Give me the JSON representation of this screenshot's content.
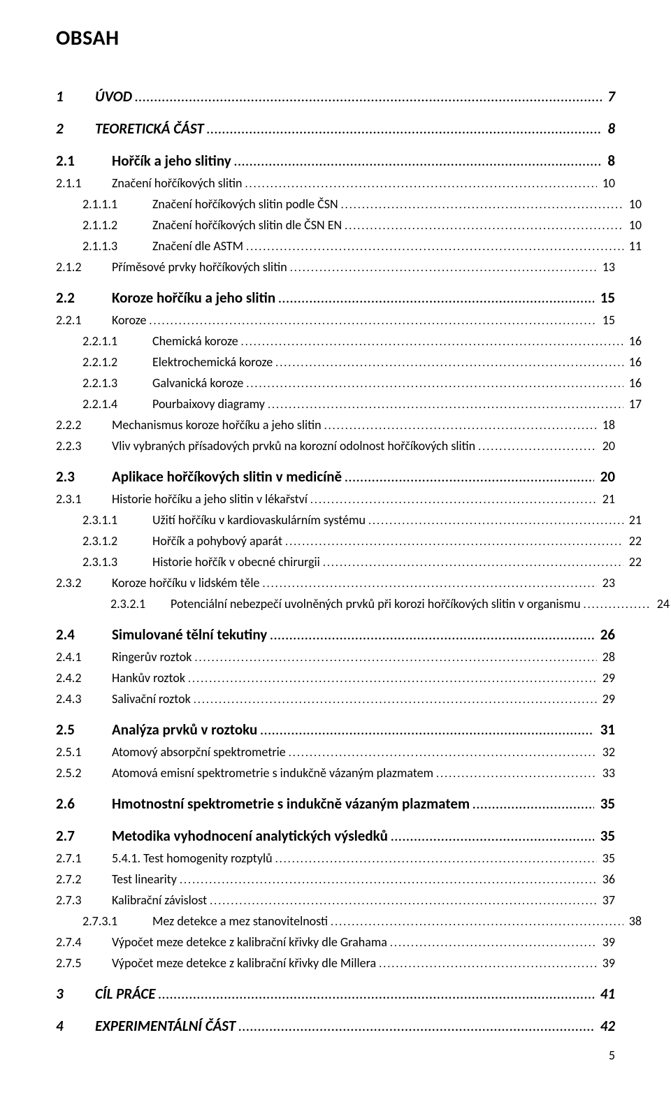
{
  "heading": "OBSAH",
  "footer_page": "5",
  "dots_fill": "............................................................................................................................................................................................................................................",
  "entries": [
    {
      "lvl": 0,
      "spacer": false,
      "num": "1",
      "title": "ÚVOD",
      "page": "7"
    },
    {
      "lvl": 0,
      "spacer": true,
      "num": "2",
      "title": "TEORETICKÁ ČÁST",
      "page": "8"
    },
    {
      "lvl": 1,
      "spacer": true,
      "num": "2.1",
      "title": "Hořčík a jeho slitiny",
      "page": "8"
    },
    {
      "lvl": 2,
      "spacer": false,
      "num": "2.1.1",
      "title": "Značení hořčíkových slitin",
      "page": "10"
    },
    {
      "lvl": 3,
      "spacer": false,
      "num": "2.1.1.1",
      "title": "Značení hořčíkových slitin podle ČSN",
      "page": "10"
    },
    {
      "lvl": 3,
      "spacer": false,
      "num": "2.1.1.2",
      "title": "Značení hořčíkových slitin dle ČSN EN",
      "page": "10"
    },
    {
      "lvl": 3,
      "spacer": false,
      "num": "2.1.1.3",
      "title": "Značení dle ASTM",
      "page": "11"
    },
    {
      "lvl": 2,
      "spacer": false,
      "num": "2.1.2",
      "title": "Příměsové prvky hořčíkových slitin",
      "page": "13"
    },
    {
      "lvl": 1,
      "spacer": true,
      "num": "2.2",
      "title": "Koroze hořčíku a jeho slitin",
      "page": "15"
    },
    {
      "lvl": 2,
      "spacer": false,
      "num": "2.2.1",
      "title": "Koroze",
      "page": "15"
    },
    {
      "lvl": 3,
      "spacer": false,
      "num": "2.2.1.1",
      "title": "Chemická koroze",
      "page": "16"
    },
    {
      "lvl": 3,
      "spacer": false,
      "num": "2.2.1.2",
      "title": "Elektrochemická koroze",
      "page": "16"
    },
    {
      "lvl": 3,
      "spacer": false,
      "num": "2.2.1.3",
      "title": "Galvanická koroze",
      "page": "16"
    },
    {
      "lvl": 3,
      "spacer": false,
      "num": "2.2.1.4",
      "title": "Pourbaixovy diagramy",
      "page": "17"
    },
    {
      "lvl": 2,
      "spacer": false,
      "num": "2.2.2",
      "title": "Mechanismus koroze hořčíku a jeho slitin",
      "page": "18"
    },
    {
      "lvl": 2,
      "spacer": false,
      "num": "2.2.3",
      "title": "Vliv vybraných přísadových prvků na korozní odolnost hořčíkových slitin",
      "page": "20"
    },
    {
      "lvl": 1,
      "spacer": true,
      "num": "2.3",
      "title": "Aplikace hořčíkových slitin v medicíně",
      "page": "20"
    },
    {
      "lvl": 2,
      "spacer": false,
      "num": "2.3.1",
      "title": "Historie hořčíku a jeho slitin v lékařství",
      "page": "21"
    },
    {
      "lvl": 3,
      "spacer": false,
      "num": "2.3.1.1",
      "title": "Užití hořčíku v kardiovaskulárním systému",
      "page": "21"
    },
    {
      "lvl": 3,
      "spacer": false,
      "num": "2.3.1.2",
      "title": "Hořčík a pohybový aparát",
      "page": "22"
    },
    {
      "lvl": 3,
      "spacer": false,
      "num": "2.3.1.3",
      "title": "Historie hořčík v obecné chirurgii",
      "page": "22"
    },
    {
      "lvl": 2,
      "spacer": false,
      "num": "2.3.2",
      "title": "Koroze hořčíku v lidském těle",
      "page": "23"
    },
    {
      "lvl": 4,
      "spacer": false,
      "num": "2.3.2.1",
      "title": "Potenciální nebezpečí uvolněných prvků při korozi hořčíkových slitin v organismu",
      "page": "24"
    },
    {
      "lvl": 1,
      "spacer": true,
      "num": "2.4",
      "title": "Simulované tělní tekutiny",
      "page": "26"
    },
    {
      "lvl": 2,
      "spacer": false,
      "num": "2.4.1",
      "title": "Ringerův roztok",
      "page": "28"
    },
    {
      "lvl": 2,
      "spacer": false,
      "num": "2.4.2",
      "title": "Hankův roztok",
      "page": "29"
    },
    {
      "lvl": 2,
      "spacer": false,
      "num": "2.4.3",
      "title": "Salivační roztok",
      "page": "29"
    },
    {
      "lvl": 1,
      "spacer": true,
      "num": "2.5",
      "title": "Analýza prvků v roztoku",
      "page": "31"
    },
    {
      "lvl": 2,
      "spacer": false,
      "num": "2.5.1",
      "title": "Atomový absorpční spektrometrie",
      "page": "32"
    },
    {
      "lvl": 2,
      "spacer": false,
      "num": "2.5.2",
      "title": "Atomová emisní spektrometrie s indukčně vázaným plazmatem",
      "page": "33"
    },
    {
      "lvl": 1,
      "spacer": true,
      "num": "2.6",
      "title": "Hmotnostní spektrometrie s indukčně vázaným plazmatem",
      "page": "35"
    },
    {
      "lvl": 1,
      "spacer": true,
      "num": "2.7",
      "title": "Metodika vyhodnocení analytických výsledků",
      "page": "35"
    },
    {
      "lvl": 2,
      "spacer": false,
      "num": "2.7.1",
      "title": "5.4.1. Test homogenity rozptylů",
      "page": "35"
    },
    {
      "lvl": 2,
      "spacer": false,
      "num": "2.7.2",
      "title": "Test linearity",
      "page": "36"
    },
    {
      "lvl": 2,
      "spacer": false,
      "num": "2.7.3",
      "title": "Kalibrační závislost",
      "page": "37"
    },
    {
      "lvl": 3,
      "spacer": false,
      "num": "2.7.3.1",
      "title": "Mez detekce a mez stanovitelnosti",
      "page": "38"
    },
    {
      "lvl": 2,
      "spacer": false,
      "num": "2.7.4",
      "title": "Výpočet meze detekce z kalibrační křivky dle Grahama",
      "page": "39"
    },
    {
      "lvl": 2,
      "spacer": false,
      "num": "2.7.5",
      "title": "Výpočet meze detekce z kalibrační křivky dle Millera",
      "page": "39"
    },
    {
      "lvl": 0,
      "spacer": true,
      "num": "3",
      "title": "CÍL PRÁCE",
      "page": "41"
    },
    {
      "lvl": 0,
      "spacer": true,
      "num": "4",
      "title": "EXPERIMENTÁLNÍ ČÁST",
      "page": "42"
    }
  ]
}
